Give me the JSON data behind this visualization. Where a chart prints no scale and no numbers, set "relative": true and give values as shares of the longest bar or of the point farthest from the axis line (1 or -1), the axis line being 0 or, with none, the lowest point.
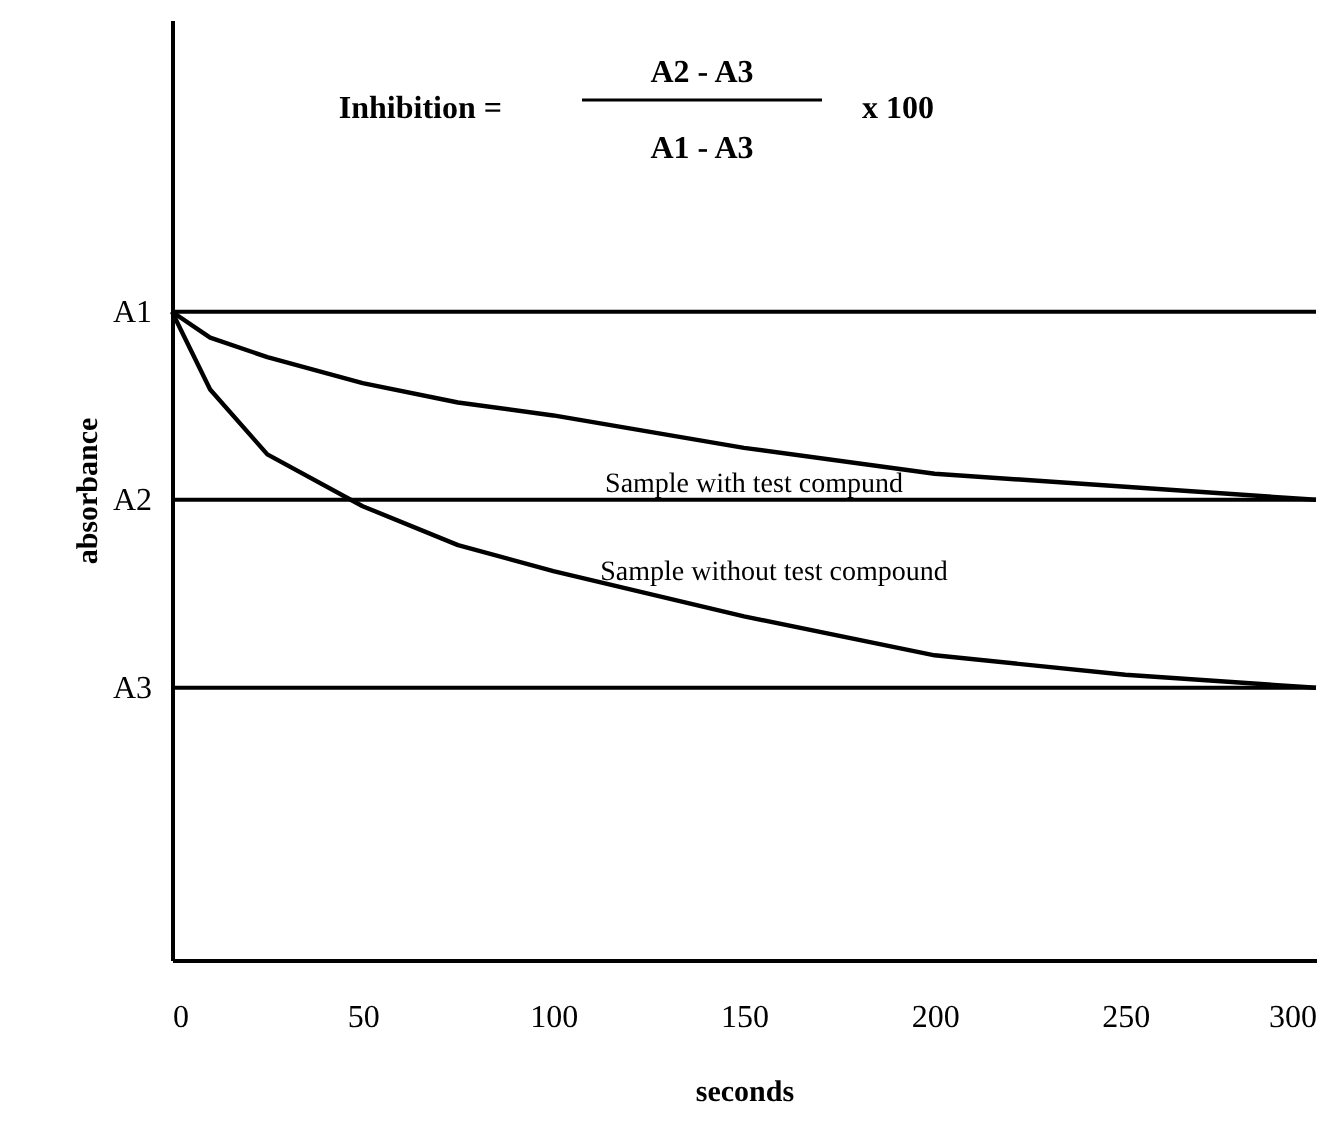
{
  "chart_data": {
    "type": "line",
    "relative": true,
    "xlabel": "seconds",
    "ylabel": "absorbance",
    "x": [
      0,
      10,
      25,
      50,
      75,
      100,
      150,
      200,
      250,
      300
    ],
    "series": [
      {
        "name": "Sample with test compund",
        "color": "#000000",
        "values": [
          1,
          0.96,
          0.93,
          0.89,
          0.86,
          0.84,
          0.79,
          0.75,
          0.73,
          0.71
        ]
      },
      {
        "name": "Sample without test compound",
        "color": "#000000",
        "values": [
          1,
          0.88,
          0.78,
          0.7,
          0.64,
          0.6,
          0.53,
          0.47,
          0.44,
          0.42
        ]
      }
    ],
    "xlim": [
      0,
      300
    ],
    "xticks": [
      0,
      50,
      100,
      150,
      200,
      250,
      300
    ],
    "ref_lines": [
      {
        "axis": "y",
        "value": 1,
        "label": "A1"
      },
      {
        "axis": "y",
        "value": 0.71,
        "label": "A2"
      },
      {
        "axis": "y",
        "value": 0.42,
        "label": "A3"
      }
    ],
    "annotations": [
      "Inhibition =",
      "A2 - A3",
      "A1 - A3",
      "x   100"
    ],
    "grid": false,
    "marker": "none",
    "line_style": "solid"
  }
}
